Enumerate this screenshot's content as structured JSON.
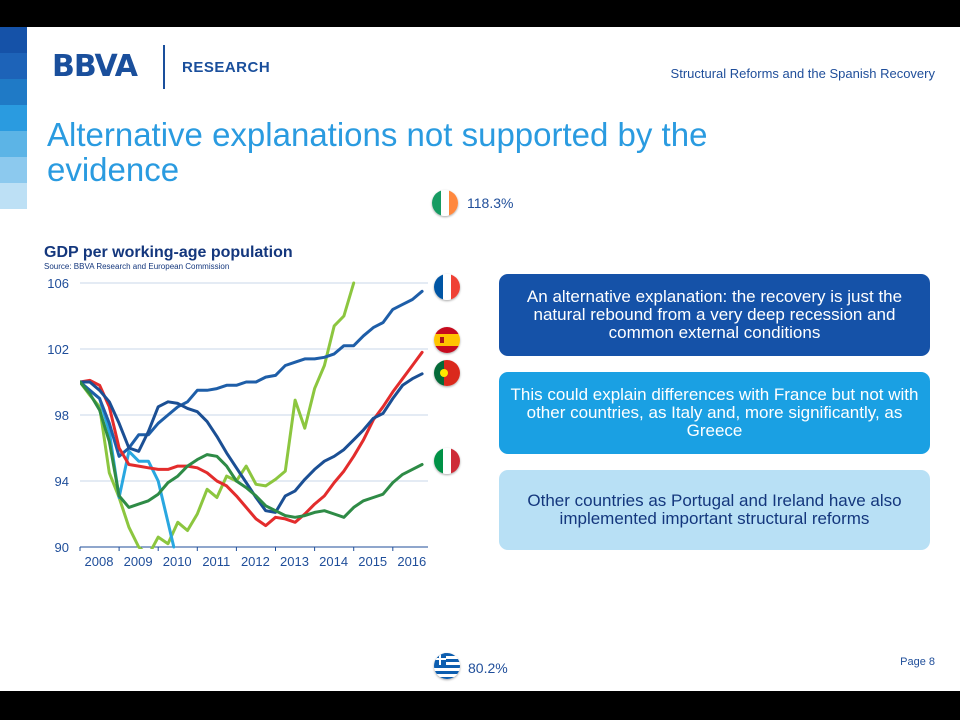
{
  "header": {
    "logo": "BBVA",
    "division": "RESEARCH",
    "subtitle": "Structural Reforms and the Spanish Recovery"
  },
  "title": "Alternative explanations not supported by the evidence",
  "page": "Page 8",
  "colors": {
    "brand": "#1a4f9c",
    "title": "#2a9be0",
    "box1": "#1552a8",
    "box2": "#1aa0e3",
    "box3": "#b8e0f5"
  },
  "flags": {
    "ireland": {
      "label": "118.3%"
    },
    "greece": {
      "label": "80.2%"
    }
  },
  "boxes": [
    "An alternative explanation: the recovery is just the natural rebound from a very deep recession and common external conditions",
    "This could explain differences with France but not with other countries, as Italy and, more significantly, as Greece",
    "Other countries as Portugal and Ireland have also implemented important structural reforms"
  ],
  "chart_data": {
    "type": "line",
    "title": "GDP per working-age population",
    "subtitle": "Source: BBVA Research and European Commission",
    "xlabel": "",
    "ylabel": "",
    "xlim": [
      2008,
      2016.9
    ],
    "ylim": [
      90,
      106
    ],
    "yticks": [
      90,
      94,
      98,
      102,
      106
    ],
    "xticks": [
      2008,
      2009,
      2010,
      2011,
      2012,
      2013,
      2014,
      2015,
      2016
    ],
    "grid": true,
    "legend": "flags at line ends",
    "series": [
      {
        "flag": "ireland",
        "color": "#8cc63f",
        "x": [
          2008,
          2008.25,
          2008.5,
          2008.75,
          2009,
          2009.25,
          2009.5,
          2009.75,
          2010,
          2010.25,
          2010.5,
          2010.75,
          2011,
          2011.25,
          2011.5,
          2011.75,
          2012,
          2012.25,
          2012.5,
          2012.75,
          2013,
          2013.25,
          2013.5,
          2013.75,
          2014,
          2014.25,
          2014.5,
          2014.75,
          2015
        ],
        "y": [
          100,
          99.2,
          98.5,
          94.5,
          93,
          91.2,
          90,
          89.5,
          90.6,
          90.2,
          91.5,
          91,
          92,
          93.5,
          93,
          94.3,
          94,
          94.9,
          93.8,
          93.7,
          94.1,
          94.6,
          98.9,
          97.2,
          99.6,
          101,
          103.4,
          104,
          106
        ]
      },
      {
        "flag": "greece",
        "color": "#29a7e0",
        "x": [
          2008,
          2008.25,
          2008.5,
          2008.75,
          2009,
          2009.25,
          2009.5,
          2009.75,
          2010,
          2010.25,
          2010.4
        ],
        "y": [
          100,
          99.5,
          99,
          97,
          93,
          95.8,
          95.2,
          95.2,
          94,
          91.5,
          90
        ]
      },
      {
        "flag": "france",
        "color": "#1e5ea8",
        "x": [
          2008,
          2008.25,
          2008.5,
          2008.75,
          2009,
          2009.25,
          2009.5,
          2009.75,
          2010,
          2010.25,
          2010.5,
          2010.75,
          2011,
          2011.25,
          2011.5,
          2011.75,
          2012,
          2012.25,
          2012.5,
          2012.75,
          2013,
          2013.25,
          2013.5,
          2013.75,
          2014,
          2014.25,
          2014.5,
          2014.75,
          2015,
          2015.25,
          2015.5,
          2015.75,
          2016,
          2016.25,
          2016.5,
          2016.75
        ],
        "y": [
          100,
          99.5,
          99,
          97.5,
          95.5,
          96,
          96.8,
          96.8,
          97.5,
          98,
          98.5,
          98.8,
          99.5,
          99.5,
          99.6,
          99.8,
          99.8,
          100,
          100,
          100.3,
          100.4,
          101,
          101.2,
          101.4,
          101.4,
          101.5,
          101.7,
          102.2,
          102.2,
          102.8,
          103.3,
          103.6,
          104.4,
          104.7,
          105,
          105.5
        ]
      },
      {
        "flag": "spain",
        "color": "#e32c2c",
        "x": [
          2008,
          2008.25,
          2008.5,
          2008.75,
          2009,
          2009.25,
          2009.5,
          2009.75,
          2010,
          2010.25,
          2010.5,
          2010.75,
          2011,
          2011.25,
          2011.5,
          2011.75,
          2012,
          2012.25,
          2012.5,
          2012.75,
          2013,
          2013.25,
          2013.5,
          2013.75,
          2014,
          2014.25,
          2014.5,
          2014.75,
          2015,
          2015.25,
          2015.5,
          2015.75,
          2016,
          2016.25,
          2016.5,
          2016.75
        ],
        "y": [
          100,
          100.1,
          99.8,
          98.5,
          96,
          95,
          94.9,
          94.8,
          94.7,
          94.7,
          94.9,
          94.9,
          94.8,
          94.5,
          94,
          93.7,
          93.1,
          92.4,
          91.7,
          91.3,
          91.8,
          91.7,
          91.5,
          92,
          92.6,
          93.1,
          93.9,
          94.6,
          95.5,
          96.5,
          97.7,
          98.5,
          99.4,
          100.2,
          101,
          101.8
        ]
      },
      {
        "flag": "portugal",
        "color": "#1b4f94",
        "x": [
          2008,
          2008.25,
          2008.5,
          2008.75,
          2009,
          2009.25,
          2009.5,
          2009.75,
          2010,
          2010.25,
          2010.5,
          2010.75,
          2011,
          2011.25,
          2011.5,
          2011.75,
          2012,
          2012.25,
          2012.5,
          2012.75,
          2013,
          2013.25,
          2013.5,
          2013.75,
          2014,
          2014.25,
          2014.5,
          2014.75,
          2015,
          2015.25,
          2015.5,
          2015.75,
          2016,
          2016.25,
          2016.5,
          2016.75
        ],
        "y": [
          100,
          100,
          99.5,
          98.8,
          97.5,
          96,
          95.8,
          97,
          98.5,
          98.8,
          98.7,
          98.4,
          98.2,
          97.6,
          96.7,
          95.7,
          94.8,
          93.9,
          93,
          92.2,
          92.1,
          93.1,
          93.4,
          94.1,
          94.7,
          95.2,
          95.5,
          95.9,
          96.5,
          97.1,
          97.8,
          98.1,
          99,
          99.8,
          100.2,
          100.5
        ]
      },
      {
        "flag": "italy",
        "color": "#2e8b46",
        "x": [
          2008,
          2008.25,
          2008.5,
          2008.75,
          2009,
          2009.25,
          2009.5,
          2009.75,
          2010,
          2010.25,
          2010.5,
          2010.75,
          2011,
          2011.25,
          2011.5,
          2011.75,
          2012,
          2012.25,
          2012.5,
          2012.75,
          2013,
          2013.25,
          2013.5,
          2013.75,
          2014,
          2014.25,
          2014.5,
          2014.75,
          2015,
          2015.25,
          2015.5,
          2015.75,
          2016,
          2016.25,
          2016.5,
          2016.75
        ],
        "y": [
          100,
          99.3,
          98.3,
          96.4,
          93.1,
          92.4,
          92.6,
          92.8,
          93.2,
          93.9,
          94.3,
          94.9,
          95.3,
          95.6,
          95.5,
          94.9,
          94,
          93.6,
          93.1,
          92.5,
          92.2,
          91.9,
          91.8,
          91.9,
          92.1,
          92.2,
          92,
          91.8,
          92.4,
          92.8,
          93,
          93.2,
          93.9,
          94.4,
          94.7,
          95
        ]
      }
    ]
  }
}
